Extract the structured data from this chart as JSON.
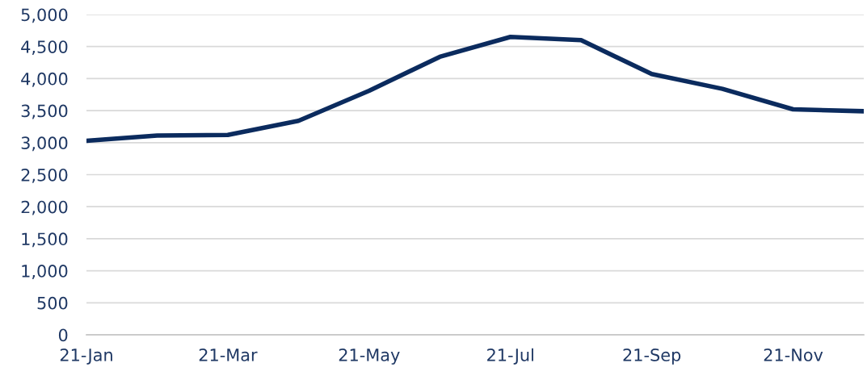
{
  "chart_data": {
    "type": "line",
    "categories": [
      "21-Jan",
      null,
      "21-Mar",
      null,
      "21-May",
      null,
      "21-Jul",
      null,
      "21-Sep",
      null,
      "21-Nov",
      null
    ],
    "series": [
      {
        "color": "#0b2b5e",
        "values": [
          3030,
          3110,
          3120,
          3340,
          3810,
          4340,
          4650,
          4600,
          4070,
          3840,
          3520,
          3490
        ]
      }
    ],
    "ylim": [
      0,
      5000
    ],
    "yticks": [
      {
        "value": 0,
        "label": "0"
      },
      {
        "value": 500,
        "label": "500"
      },
      {
        "value": 1000,
        "label": "1,000"
      },
      {
        "value": 1500,
        "label": "1,500"
      },
      {
        "value": 2000,
        "label": "2,000"
      },
      {
        "value": 2500,
        "label": "2,500"
      },
      {
        "value": 3000,
        "label": "3,000"
      },
      {
        "value": 3500,
        "label": "3,500"
      },
      {
        "value": 4000,
        "label": "4,000"
      },
      {
        "value": 4500,
        "label": "4,500"
      },
      {
        "value": 5000,
        "label": "5,000"
      }
    ],
    "grid": "y",
    "marker": "none",
    "line_style": "solid"
  }
}
